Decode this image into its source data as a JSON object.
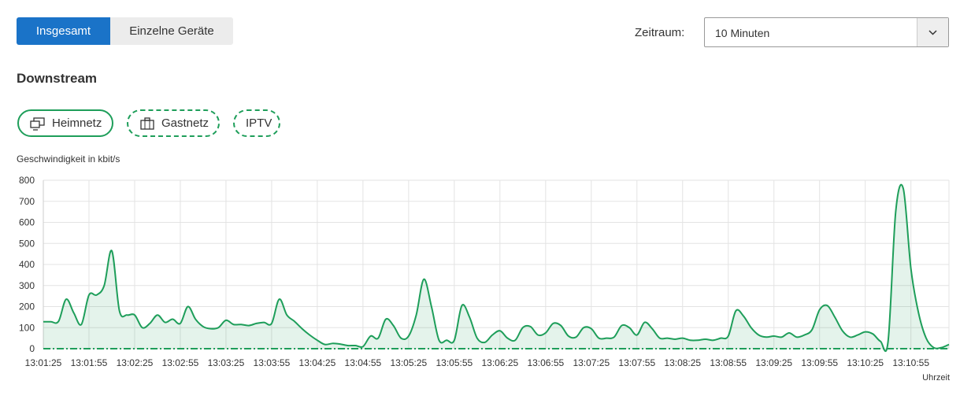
{
  "tabs": [
    "Insgesamt",
    "Einzelne Geräte"
  ],
  "period_label": "Zeitraum:",
  "period_value": "10 Minuten",
  "section_title": "Downstream",
  "chart_data": {
    "type": "line",
    "y_label": "Geschwindigkeit in kbit/s",
    "x_label": "Uhrzeit",
    "categories": [
      "13:01:25",
      null,
      null,
      null,
      null,
      null,
      "13:01:55",
      null,
      null,
      null,
      null,
      null,
      "13:02:25",
      null,
      null,
      null,
      null,
      null,
      "13:02:55",
      null,
      null,
      null,
      null,
      null,
      "13:03:25",
      null,
      null,
      null,
      null,
      null,
      "13:03:55",
      null,
      null,
      null,
      null,
      null,
      "13:04:25",
      null,
      null,
      null,
      null,
      null,
      "13:04:55",
      null,
      null,
      null,
      null,
      null,
      "13:05:25",
      null,
      null,
      null,
      null,
      null,
      "13:05:55",
      null,
      null,
      null,
      null,
      null,
      "13:06:25",
      null,
      null,
      null,
      null,
      null,
      "13:06:55",
      null,
      null,
      null,
      null,
      null,
      "13:07:25",
      null,
      null,
      null,
      null,
      null,
      "13:07:55",
      null,
      null,
      null,
      null,
      null,
      "13:08:25",
      null,
      null,
      null,
      null,
      null,
      "13:08:55",
      null,
      null,
      null,
      null,
      null,
      "13:09:25",
      null,
      null,
      null,
      null,
      null,
      "13:09:55",
      null,
      null,
      null,
      null,
      null,
      "13:10:25",
      null,
      null,
      null,
      null,
      null,
      "13:10:55",
      null,
      null,
      null,
      null,
      null
    ],
    "series": [
      {
        "name": "Heimnetz",
        "color": "#1e9e5a",
        "line_style": "solid",
        "fill": true,
        "values": [
          128,
          128,
          130,
          235,
          170,
          115,
          255,
          255,
          300,
          465,
          180,
          160,
          160,
          100,
          120,
          160,
          125,
          140,
          120,
          200,
          140,
          105,
          95,
          100,
          135,
          115,
          115,
          110,
          120,
          125,
          120,
          235,
          160,
          130,
          95,
          65,
          40,
          20,
          25,
          22,
          15,
          15,
          10,
          60,
          50,
          140,
          110,
          50,
          60,
          160,
          330,
          200,
          40,
          40,
          40,
          205,
          150,
          50,
          30,
          65,
          85,
          50,
          40,
          100,
          105,
          65,
          75,
          120,
          110,
          60,
          55,
          100,
          95,
          50,
          50,
          55,
          110,
          100,
          65,
          125,
          95,
          50,
          50,
          45,
          50,
          40,
          40,
          45,
          40,
          50,
          60,
          180,
          155,
          100,
          65,
          55,
          60,
          55,
          75,
          55,
          65,
          90,
          185,
          205,
          150,
          85,
          55,
          65,
          80,
          70,
          35,
          35,
          650,
          760,
          380,
          170,
          50,
          5,
          5,
          20
        ]
      },
      {
        "name": "Gastnetz",
        "color": "#1e9e5a",
        "line_style": "dashdot",
        "fill": false,
        "values": [
          0,
          0,
          0,
          0,
          0,
          0,
          0,
          0,
          0,
          0,
          0,
          0,
          0,
          0,
          0,
          0,
          0,
          0,
          0,
          0,
          0,
          0,
          0,
          0,
          0,
          0,
          0,
          0,
          0,
          0,
          0,
          0,
          0,
          0,
          0,
          0,
          0,
          0,
          0,
          0,
          0,
          0,
          0,
          0,
          0,
          0,
          0,
          0,
          0,
          0,
          0,
          0,
          0,
          0,
          0,
          0,
          0,
          0,
          0,
          0,
          0,
          0,
          0,
          0,
          0,
          0,
          0,
          0,
          0,
          0,
          0,
          0,
          0,
          0,
          0,
          0,
          0,
          0,
          0,
          0,
          0,
          0,
          0,
          0,
          0,
          0,
          0,
          0,
          0,
          0,
          0,
          0,
          0,
          0,
          0,
          0,
          0,
          0,
          0,
          0,
          0,
          0,
          0,
          0,
          0,
          0,
          0,
          0,
          0,
          0,
          0,
          0,
          0,
          0,
          0,
          0,
          0,
          0,
          0,
          0
        ]
      },
      {
        "name": "IPTV",
        "color": "#1e9e5a",
        "line_style": "dashdot",
        "fill": false,
        "values": [
          0,
          0,
          0,
          0,
          0,
          0,
          0,
          0,
          0,
          0,
          0,
          0,
          0,
          0,
          0,
          0,
          0,
          0,
          0,
          0,
          0,
          0,
          0,
          0,
          0,
          0,
          0,
          0,
          0,
          0,
          0,
          0,
          0,
          0,
          0,
          0,
          0,
          0,
          0,
          0,
          0,
          0,
          0,
          0,
          0,
          0,
          0,
          0,
          0,
          0,
          0,
          0,
          0,
          0,
          0,
          0,
          0,
          0,
          0,
          0,
          0,
          0,
          0,
          0,
          0,
          0,
          0,
          0,
          0,
          0,
          0,
          0,
          0,
          0,
          0,
          0,
          0,
          0,
          0,
          0,
          0,
          0,
          0,
          0,
          0,
          0,
          0,
          0,
          0,
          0,
          0,
          0,
          0,
          0,
          0,
          0,
          0,
          0,
          0,
          0,
          0,
          0,
          0,
          0,
          0,
          0,
          0,
          0,
          0,
          0,
          0,
          0,
          0,
          0,
          0,
          0,
          0,
          0,
          0,
          0
        ]
      }
    ],
    "ylim": [
      0,
      800
    ],
    "yticks": [
      0,
      100,
      200,
      300,
      400,
      500,
      600,
      700,
      800
    ],
    "grid": true
  }
}
